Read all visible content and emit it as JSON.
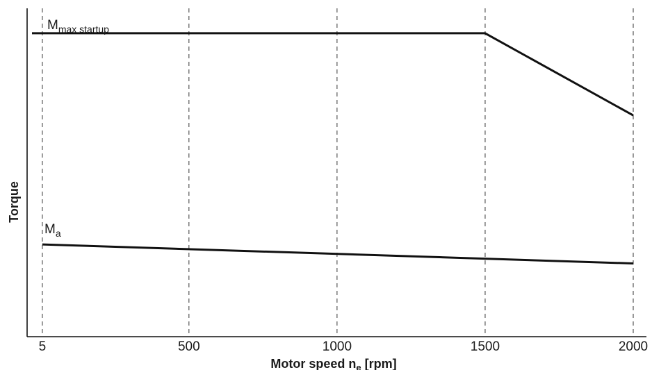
{
  "chart_data": {
    "type": "line",
    "title": "",
    "xlabel": {
      "main": "Motor speed n",
      "subscript": "e",
      "unit": " [rpm]"
    },
    "ylabel": "Torque",
    "x_ticks": [
      "5",
      "500",
      "1000",
      "1500",
      "2000"
    ],
    "x_tick_values": [
      5,
      500,
      1000,
      1500,
      2000
    ],
    "xlim": [
      -30,
      2000
    ],
    "ylim": [
      0,
      1
    ],
    "y_tick_labels_shown": false,
    "grid": "vertical dashed lines at x ticks",
    "series": [
      {
        "name": "M_max startup",
        "label_main": "M",
        "label_sub": "max startup",
        "x": [
          -30,
          1500,
          2000
        ],
        "y": [
          0.924,
          0.924,
          0.674
        ]
      },
      {
        "name": "M_a",
        "label_main": "M",
        "label_sub": "a",
        "x": [
          5,
          2000
        ],
        "y": [
          0.281,
          0.223
        ]
      }
    ],
    "colors": {
      "line": "#111111",
      "axis": "#111111",
      "grid": "#333333",
      "text": "#1a1a1a"
    }
  }
}
